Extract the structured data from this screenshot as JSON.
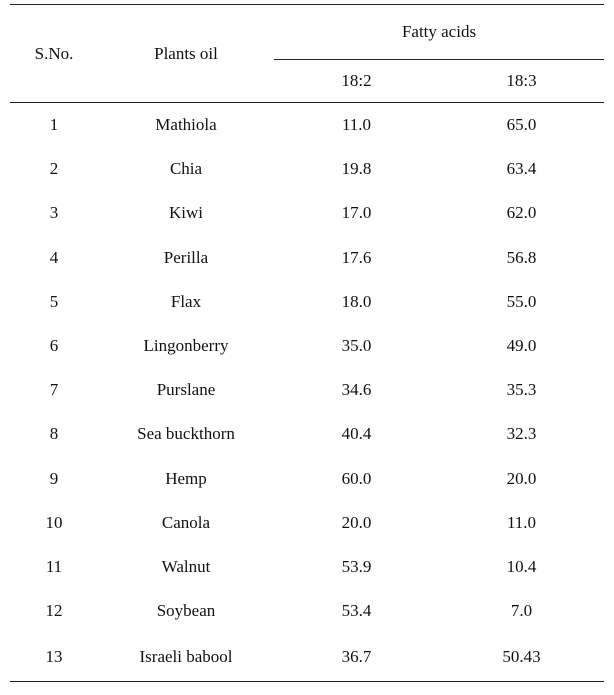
{
  "table": {
    "headers": {
      "sno": "S.No.",
      "plants_oil": "Plants oil",
      "fatty_acids": "Fatty acids",
      "sub": [
        "18:2",
        "18:3"
      ]
    },
    "rows": [
      {
        "sno": "1",
        "plant": "Mathiola",
        "c18_2": "11.0",
        "c18_3": "65.0"
      },
      {
        "sno": "2",
        "plant": "Chia",
        "c18_2": "19.8",
        "c18_3": "63.4"
      },
      {
        "sno": "3",
        "plant": "Kiwi",
        "c18_2": "17.0",
        "c18_3": "62.0"
      },
      {
        "sno": "4",
        "plant": "Perilla",
        "c18_2": "17.6",
        "c18_3": "56.8"
      },
      {
        "sno": "5",
        "plant": "Flax",
        "c18_2": "18.0",
        "c18_3": "55.0"
      },
      {
        "sno": "6",
        "plant": "Lingonberry",
        "c18_2": "35.0",
        "c18_3": "49.0"
      },
      {
        "sno": "7",
        "plant": "Purslane",
        "c18_2": "34.6",
        "c18_3": "35.3"
      },
      {
        "sno": "8",
        "plant": "Sea buckthorn",
        "c18_2": "40.4",
        "c18_3": "32.3"
      },
      {
        "sno": "9",
        "plant": "Hemp",
        "c18_2": "60.0",
        "c18_3": "20.0"
      },
      {
        "sno": "10",
        "plant": "Canola",
        "c18_2": "20.0",
        "c18_3": "11.0"
      },
      {
        "sno": "11",
        "plant": "Walnut",
        "c18_2": "53.9",
        "c18_3": "10.4"
      },
      {
        "sno": "12",
        "plant": "Soybean",
        "c18_2": "53.4",
        "c18_3": "7.0"
      },
      {
        "sno": "13",
        "plant": "Israeli babool",
        "c18_2": "36.7",
        "c18_3": "50.43"
      }
    ]
  }
}
